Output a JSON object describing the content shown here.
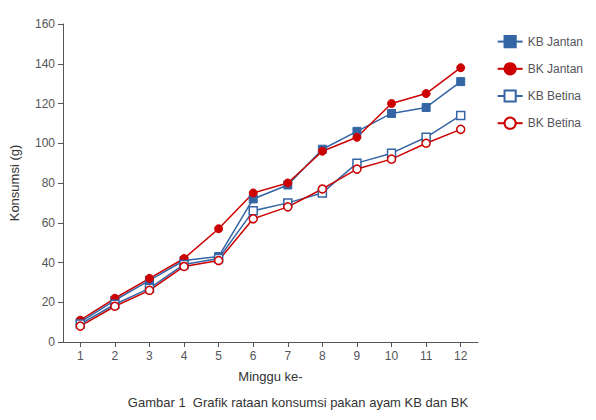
{
  "chart_data": {
    "type": "line",
    "title": "Gambar 1  Grafik rataan konsumsi pakan ayam KB dan BK",
    "xlabel": "Minggu ke-",
    "ylabel": "Konsumsi (g)",
    "x": [
      1,
      2,
      3,
      4,
      5,
      6,
      7,
      8,
      9,
      10,
      11,
      12
    ],
    "series": [
      {
        "name": "KB Jantan",
        "color": "#3465A4",
        "marker": "square",
        "values": [
          10,
          21,
          31,
          41,
          43,
          72,
          79,
          97,
          106,
          115,
          118,
          131
        ]
      },
      {
        "name": "BK Jantan",
        "color": "#CC0000",
        "marker": "circle",
        "values": [
          11,
          22,
          32,
          42,
          57,
          75,
          80,
          96,
          103,
          120,
          125,
          138
        ]
      },
      {
        "name": "KB Betina",
        "color": "#3465A4",
        "marker": "open-square",
        "values": [
          9,
          19,
          27,
          39,
          42,
          66,
          70,
          75,
          90,
          95,
          103,
          114
        ]
      },
      {
        "name": "BK Betina",
        "color": "#CC0000",
        "marker": "open-circle",
        "values": [
          8,
          18,
          26,
          38,
          41,
          62,
          68,
          77,
          87,
          92,
          100,
          107
        ]
      }
    ],
    "xlim": [
      0.5,
      12.5
    ],
    "xticks": [
      1,
      2,
      3,
      4,
      5,
      6,
      7,
      8,
      9,
      10,
      11,
      12
    ],
    "ylim": [
      0,
      160
    ],
    "yticks": [
      0,
      20,
      40,
      60,
      80,
      100,
      120,
      140,
      160
    ],
    "grid": false,
    "legend": "right"
  }
}
